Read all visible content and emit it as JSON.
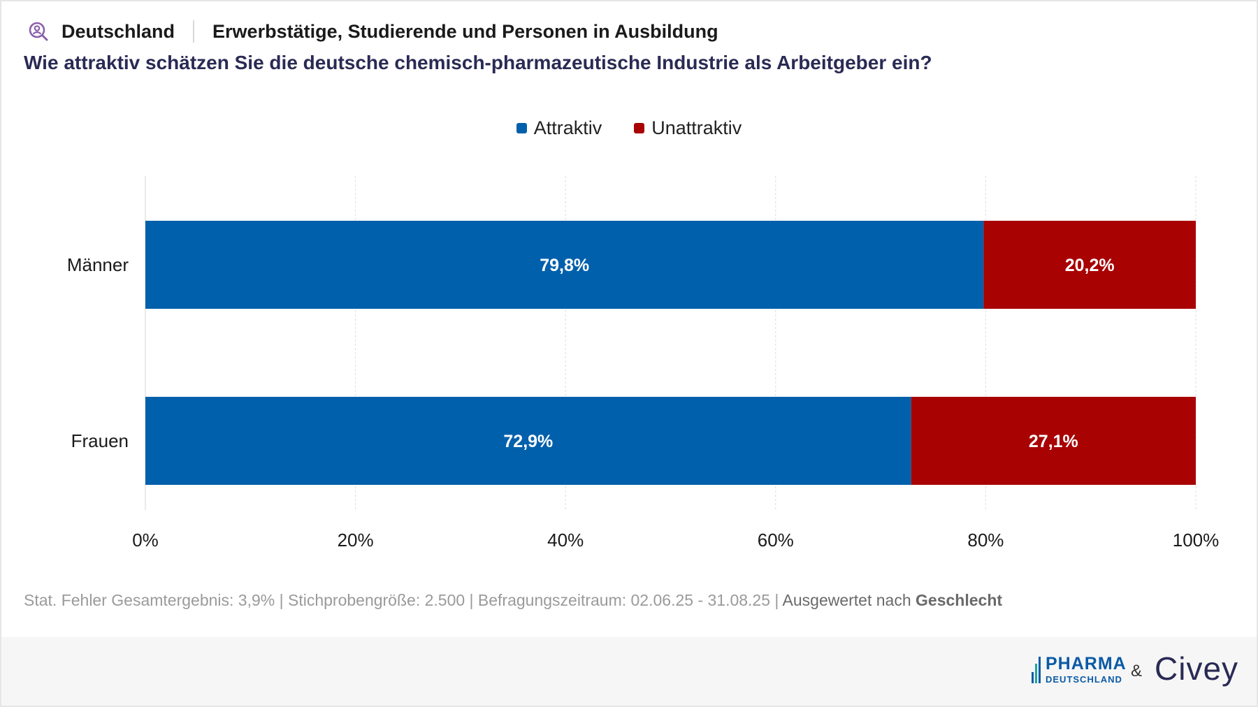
{
  "header": {
    "location": "Deutschland",
    "population": "Erwerbstätige, Studierende und Personen in Ausbildung",
    "question": "Wie attraktiv schätzen Sie die deutsche chemisch-pharmazeutische Industrie als Arbeitgeber ein?",
    "location_icon": "search-person-icon"
  },
  "legend": [
    {
      "label": "Attraktiv",
      "color": "#0160ab"
    },
    {
      "label": "Unattraktiv",
      "color": "#a80202"
    }
  ],
  "chart_data": {
    "type": "bar",
    "orientation": "horizontal",
    "stacked": true,
    "categories": [
      "Männer",
      "Frauen"
    ],
    "series": [
      {
        "name": "Attraktiv",
        "color": "#0160ab",
        "values": [
          79.8,
          72.9
        ],
        "labels": [
          "79,8%",
          "72,9%"
        ]
      },
      {
        "name": "Unattraktiv",
        "color": "#a80202",
        "values": [
          20.2,
          27.1
        ],
        "labels": [
          "20,2%",
          "27,1%"
        ]
      }
    ],
    "xlim": [
      0,
      100
    ],
    "xticks": [
      0,
      20,
      40,
      60,
      80,
      100
    ],
    "xtick_labels": [
      "0%",
      "20%",
      "40%",
      "60%",
      "80%",
      "100%"
    ],
    "grid": true,
    "legend_position": "top"
  },
  "footer": {
    "stats": "Stat. Fehler Gesamtergebnis: 3,9% | Stichprobengröße: 2.500 | Befragungszeitraum: 02.06.25 - 31.08.25 |",
    "evaluated_prefix": "Ausgewertet nach",
    "evaluated_by": "Geschlecht"
  },
  "brand": {
    "pharma_big": "PHARMA",
    "pharma_small": "DEUTSCHLAND",
    "amp": "&",
    "civey": "Civey"
  }
}
